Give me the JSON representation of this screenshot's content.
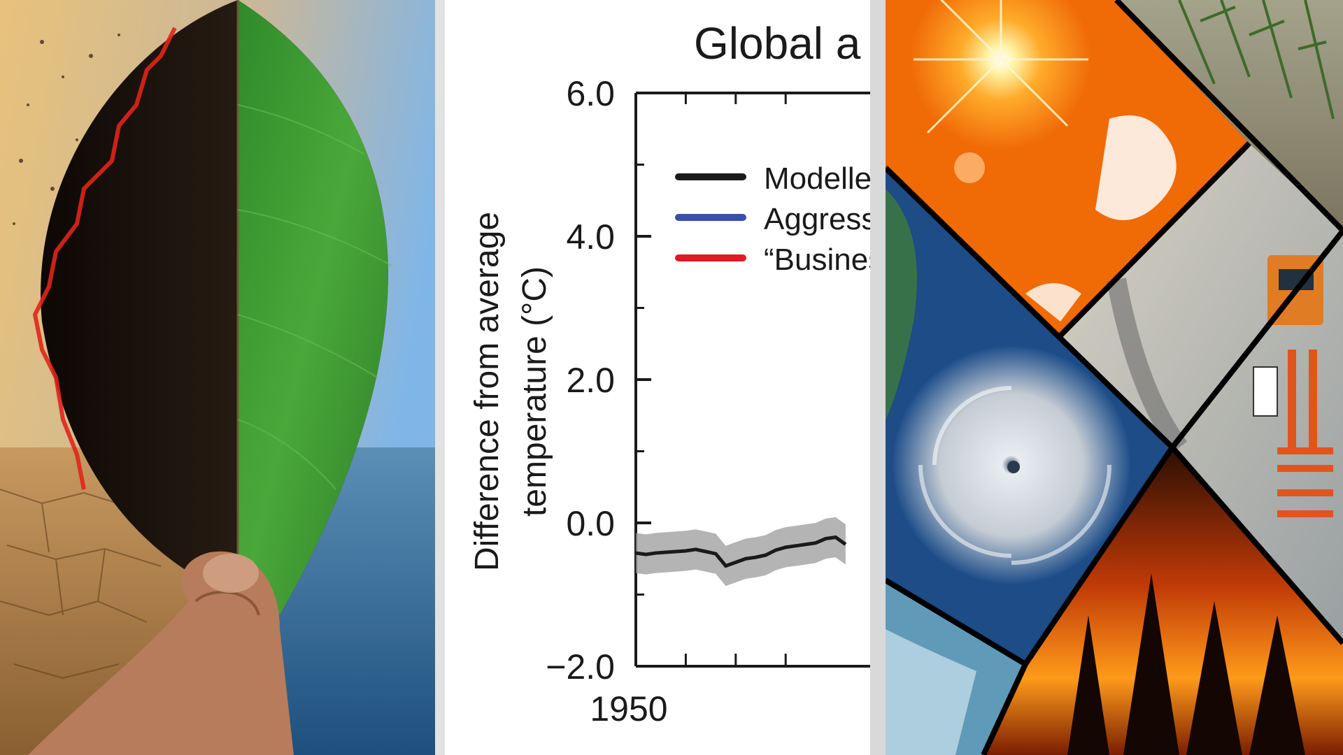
{
  "chart_data": {
    "type": "line",
    "title": "Global a",
    "ylabel_line1": "Difference from average",
    "ylabel_line2": "temperature (°C)",
    "y_ticks": [
      "6.0",
      "4.0",
      "2.0",
      "0.0",
      "−2.0"
    ],
    "x_ticks": [
      "1950"
    ],
    "ylim": [
      -2.0,
      6.0
    ],
    "xlim": [
      1950,
      1975
    ],
    "legend": [
      {
        "label": "Modelled",
        "color": "#1a1a1a"
      },
      {
        "label": "Aggressi",
        "color": "#3a4fa8"
      },
      {
        "label": "“Busines",
        "color": "#e11a22"
      }
    ],
    "series": [
      {
        "name": "Modelled",
        "color": "#1a1a1a",
        "x": [
          1950,
          1951,
          1952,
          1953,
          1954,
          1955,
          1956,
          1957,
          1958,
          1959,
          1960,
          1961,
          1962,
          1963,
          1964,
          1965,
          1966,
          1967,
          1968,
          1969,
          1970,
          1971
        ],
        "y": [
          -0.42,
          -0.44,
          -0.42,
          -0.41,
          -0.4,
          -0.39,
          -0.37,
          -0.4,
          -0.43,
          -0.6,
          -0.55,
          -0.5,
          -0.48,
          -0.45,
          -0.38,
          -0.34,
          -0.32,
          -0.3,
          -0.28,
          -0.22,
          -0.2,
          -0.3
        ],
        "band": 0.28
      }
    ]
  }
}
